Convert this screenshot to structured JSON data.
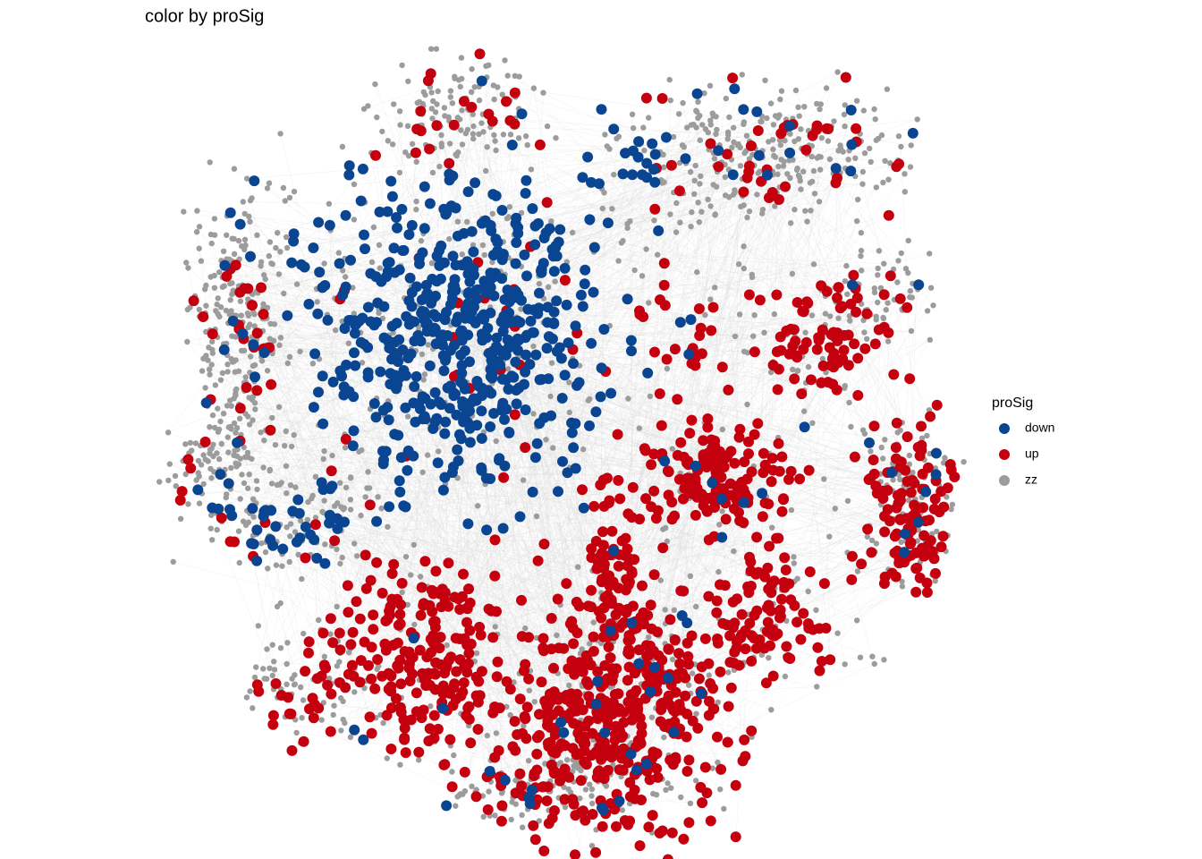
{
  "chart_data": {
    "type": "network",
    "title": "color by proSig",
    "legend_title": "proSig",
    "series": [
      {
        "name": "down",
        "color": "#0a4591"
      },
      {
        "name": "up",
        "color": "#c4000f"
      },
      {
        "name": "zz",
        "color": "#9c9c9c"
      }
    ]
  }
}
